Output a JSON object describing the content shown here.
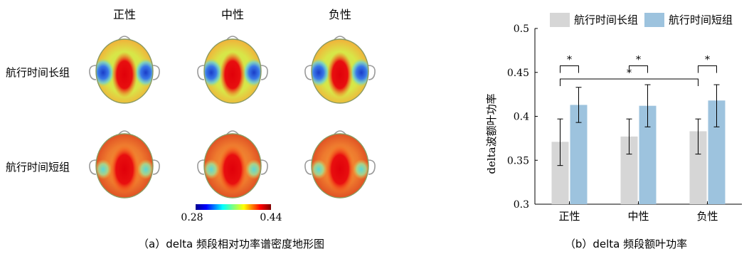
{
  "topomap": {
    "column_labels": [
      "正性",
      "中性",
      "负性"
    ],
    "row_labels": [
      "航行时间长组",
      "航行时间短组"
    ],
    "colorbar": {
      "min": "0.28",
      "max": "0.44"
    },
    "caption": "（a）delta 频段相对功率谱密度地形图"
  },
  "chart_data": {
    "type": "bar",
    "categories": [
      "正性",
      "中性",
      "负性"
    ],
    "series": [
      {
        "name": "航行时间长组",
        "values": [
          0.371,
          0.377,
          0.383
        ],
        "error_low": [
          0.344,
          0.357,
          0.357
        ],
        "error_high": [
          0.397,
          0.397,
          0.397
        ],
        "color": "#d6d6d6"
      },
      {
        "name": "航行时间短组",
        "values": [
          0.413,
          0.412,
          0.418
        ],
        "error_low": [
          0.393,
          0.388,
          0.388
        ],
        "error_high": [
          0.433,
          0.436,
          0.436
        ],
        "color": "#9dc3de"
      }
    ],
    "ylabel": "delta波额叶功率",
    "ylim": [
      0.3,
      0.5
    ],
    "yticks": [
      "0.3",
      "0.35",
      "0.4",
      "0.45",
      "0.5"
    ],
    "legend": "top",
    "significance": [
      {
        "from": "0.0",
        "to": "0.1",
        "label": "*"
      },
      {
        "from": "1.0",
        "to": "1.1",
        "label": "*"
      },
      {
        "from": "2.0",
        "to": "2.1",
        "label": "*"
      },
      {
        "from": "0.0",
        "to": "2.0",
        "label": "*"
      }
    ],
    "caption": "（b）delta 频段额叶功率"
  }
}
